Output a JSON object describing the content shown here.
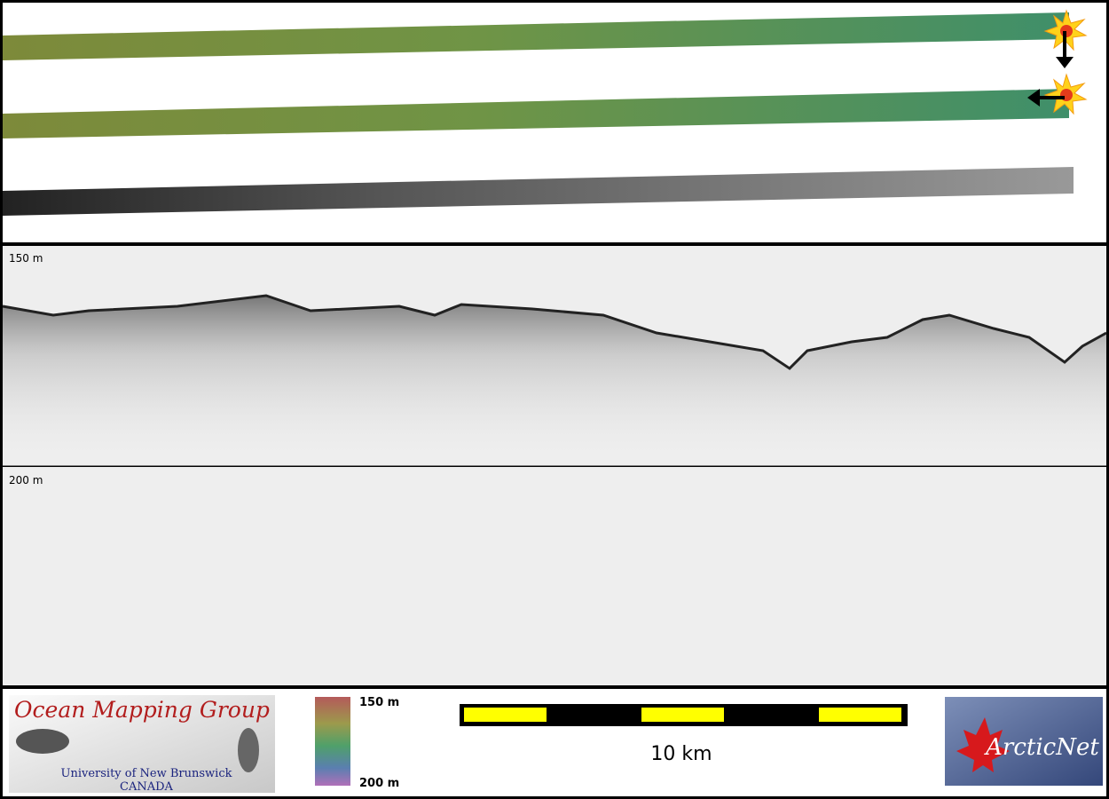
{
  "profile_panel": {
    "upper_depth_label": "150 m",
    "lower_depth_label": "200 m"
  },
  "footer": {
    "group_logo": {
      "title": "Ocean Mapping Group",
      "university": "University of New Brunswick",
      "country": "CANADA"
    },
    "color_scale": {
      "top_label": "150 m",
      "bottom_label": "200 m"
    },
    "scale_bar": {
      "label": "10 km"
    },
    "partner_logo": {
      "name": "ArcticNet"
    }
  }
}
